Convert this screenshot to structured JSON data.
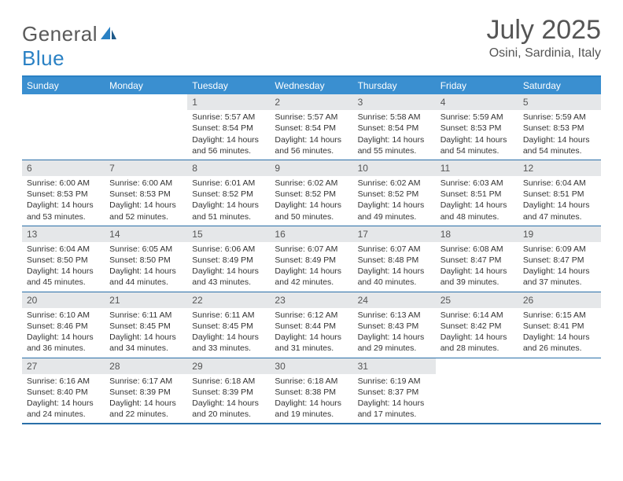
{
  "brand": {
    "general": "General",
    "blue": "Blue"
  },
  "title": "July 2025",
  "location": "Osini, Sardinia, Italy",
  "colors": {
    "header_bg": "#3a8fd0",
    "header_text": "#ffffff",
    "border": "#2a6fa8",
    "daynum_bg": "#e5e7e9",
    "text": "#333333",
    "brand_grey": "#5a5a5a",
    "brand_blue": "#2a81c4"
  },
  "day_names": [
    "Sunday",
    "Monday",
    "Tuesday",
    "Wednesday",
    "Thursday",
    "Friday",
    "Saturday"
  ],
  "weeks": [
    [
      {
        "n": "",
        "sr": "",
        "ss": "",
        "dl": ""
      },
      {
        "n": "",
        "sr": "",
        "ss": "",
        "dl": ""
      },
      {
        "n": "1",
        "sr": "Sunrise: 5:57 AM",
        "ss": "Sunset: 8:54 PM",
        "dl": "Daylight: 14 hours and 56 minutes."
      },
      {
        "n": "2",
        "sr": "Sunrise: 5:57 AM",
        "ss": "Sunset: 8:54 PM",
        "dl": "Daylight: 14 hours and 56 minutes."
      },
      {
        "n": "3",
        "sr": "Sunrise: 5:58 AM",
        "ss": "Sunset: 8:54 PM",
        "dl": "Daylight: 14 hours and 55 minutes."
      },
      {
        "n": "4",
        "sr": "Sunrise: 5:59 AM",
        "ss": "Sunset: 8:53 PM",
        "dl": "Daylight: 14 hours and 54 minutes."
      },
      {
        "n": "5",
        "sr": "Sunrise: 5:59 AM",
        "ss": "Sunset: 8:53 PM",
        "dl": "Daylight: 14 hours and 54 minutes."
      }
    ],
    [
      {
        "n": "6",
        "sr": "Sunrise: 6:00 AM",
        "ss": "Sunset: 8:53 PM",
        "dl": "Daylight: 14 hours and 53 minutes."
      },
      {
        "n": "7",
        "sr": "Sunrise: 6:00 AM",
        "ss": "Sunset: 8:53 PM",
        "dl": "Daylight: 14 hours and 52 minutes."
      },
      {
        "n": "8",
        "sr": "Sunrise: 6:01 AM",
        "ss": "Sunset: 8:52 PM",
        "dl": "Daylight: 14 hours and 51 minutes."
      },
      {
        "n": "9",
        "sr": "Sunrise: 6:02 AM",
        "ss": "Sunset: 8:52 PM",
        "dl": "Daylight: 14 hours and 50 minutes."
      },
      {
        "n": "10",
        "sr": "Sunrise: 6:02 AM",
        "ss": "Sunset: 8:52 PM",
        "dl": "Daylight: 14 hours and 49 minutes."
      },
      {
        "n": "11",
        "sr": "Sunrise: 6:03 AM",
        "ss": "Sunset: 8:51 PM",
        "dl": "Daylight: 14 hours and 48 minutes."
      },
      {
        "n": "12",
        "sr": "Sunrise: 6:04 AM",
        "ss": "Sunset: 8:51 PM",
        "dl": "Daylight: 14 hours and 47 minutes."
      }
    ],
    [
      {
        "n": "13",
        "sr": "Sunrise: 6:04 AM",
        "ss": "Sunset: 8:50 PM",
        "dl": "Daylight: 14 hours and 45 minutes."
      },
      {
        "n": "14",
        "sr": "Sunrise: 6:05 AM",
        "ss": "Sunset: 8:50 PM",
        "dl": "Daylight: 14 hours and 44 minutes."
      },
      {
        "n": "15",
        "sr": "Sunrise: 6:06 AM",
        "ss": "Sunset: 8:49 PM",
        "dl": "Daylight: 14 hours and 43 minutes."
      },
      {
        "n": "16",
        "sr": "Sunrise: 6:07 AM",
        "ss": "Sunset: 8:49 PM",
        "dl": "Daylight: 14 hours and 42 minutes."
      },
      {
        "n": "17",
        "sr": "Sunrise: 6:07 AM",
        "ss": "Sunset: 8:48 PM",
        "dl": "Daylight: 14 hours and 40 minutes."
      },
      {
        "n": "18",
        "sr": "Sunrise: 6:08 AM",
        "ss": "Sunset: 8:47 PM",
        "dl": "Daylight: 14 hours and 39 minutes."
      },
      {
        "n": "19",
        "sr": "Sunrise: 6:09 AM",
        "ss": "Sunset: 8:47 PM",
        "dl": "Daylight: 14 hours and 37 minutes."
      }
    ],
    [
      {
        "n": "20",
        "sr": "Sunrise: 6:10 AM",
        "ss": "Sunset: 8:46 PM",
        "dl": "Daylight: 14 hours and 36 minutes."
      },
      {
        "n": "21",
        "sr": "Sunrise: 6:11 AM",
        "ss": "Sunset: 8:45 PM",
        "dl": "Daylight: 14 hours and 34 minutes."
      },
      {
        "n": "22",
        "sr": "Sunrise: 6:11 AM",
        "ss": "Sunset: 8:45 PM",
        "dl": "Daylight: 14 hours and 33 minutes."
      },
      {
        "n": "23",
        "sr": "Sunrise: 6:12 AM",
        "ss": "Sunset: 8:44 PM",
        "dl": "Daylight: 14 hours and 31 minutes."
      },
      {
        "n": "24",
        "sr": "Sunrise: 6:13 AM",
        "ss": "Sunset: 8:43 PM",
        "dl": "Daylight: 14 hours and 29 minutes."
      },
      {
        "n": "25",
        "sr": "Sunrise: 6:14 AM",
        "ss": "Sunset: 8:42 PM",
        "dl": "Daylight: 14 hours and 28 minutes."
      },
      {
        "n": "26",
        "sr": "Sunrise: 6:15 AM",
        "ss": "Sunset: 8:41 PM",
        "dl": "Daylight: 14 hours and 26 minutes."
      }
    ],
    [
      {
        "n": "27",
        "sr": "Sunrise: 6:16 AM",
        "ss": "Sunset: 8:40 PM",
        "dl": "Daylight: 14 hours and 24 minutes."
      },
      {
        "n": "28",
        "sr": "Sunrise: 6:17 AM",
        "ss": "Sunset: 8:39 PM",
        "dl": "Daylight: 14 hours and 22 minutes."
      },
      {
        "n": "29",
        "sr": "Sunrise: 6:18 AM",
        "ss": "Sunset: 8:39 PM",
        "dl": "Daylight: 14 hours and 20 minutes."
      },
      {
        "n": "30",
        "sr": "Sunrise: 6:18 AM",
        "ss": "Sunset: 8:38 PM",
        "dl": "Daylight: 14 hours and 19 minutes."
      },
      {
        "n": "31",
        "sr": "Sunrise: 6:19 AM",
        "ss": "Sunset: 8:37 PM",
        "dl": "Daylight: 14 hours and 17 minutes."
      },
      {
        "n": "",
        "sr": "",
        "ss": "",
        "dl": ""
      },
      {
        "n": "",
        "sr": "",
        "ss": "",
        "dl": ""
      }
    ]
  ]
}
